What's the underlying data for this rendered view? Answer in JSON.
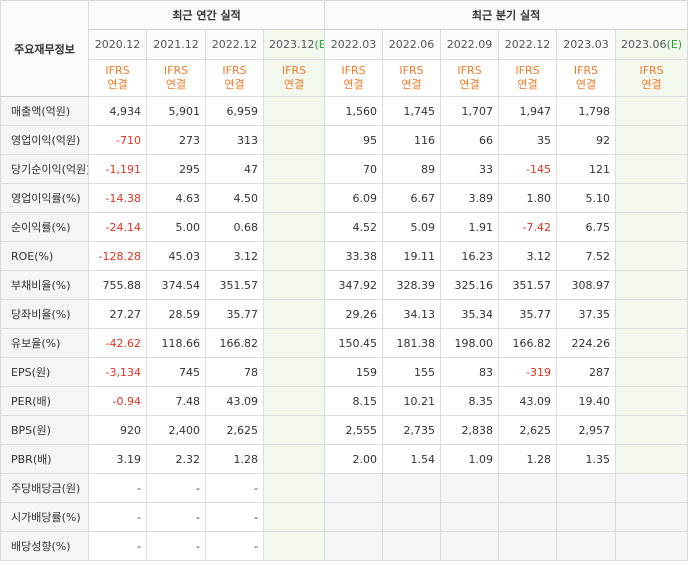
{
  "header": {
    "label_title": "주요재무정보",
    "annual_title": "최근 연간 실적",
    "quarter_title": "최근 분기 실적",
    "periods": [
      {
        "label": "2020.12",
        "est": ""
      },
      {
        "label": "2021.12",
        "est": ""
      },
      {
        "label": "2022.12",
        "est": ""
      },
      {
        "label": "2023.12",
        "est": "(E)"
      },
      {
        "label": "2022.03",
        "est": ""
      },
      {
        "label": "2022.06",
        "est": ""
      },
      {
        "label": "2022.09",
        "est": ""
      },
      {
        "label": "2022.12",
        "est": ""
      },
      {
        "label": "2023.03",
        "est": ""
      },
      {
        "label": "2023.06",
        "est": "(E)"
      }
    ],
    "basis_line1": "IFRS",
    "basis_line2": "연결"
  },
  "rows": [
    {
      "label": "매출액(억원)",
      "values": [
        "4,934",
        "5,901",
        "6,959",
        "",
        "1,560",
        "1,745",
        "1,707",
        "1,947",
        "1,798",
        ""
      ]
    },
    {
      "label": "영업이익(억원)",
      "values": [
        "-710",
        "273",
        "313",
        "",
        "95",
        "116",
        "66",
        "35",
        "92",
        ""
      ]
    },
    {
      "label": "당기순이익(억원)",
      "values": [
        "-1,191",
        "295",
        "47",
        "",
        "70",
        "89",
        "33",
        "-145",
        "121",
        ""
      ]
    },
    {
      "label": "영업이익률(%)",
      "values": [
        "-14.38",
        "4.63",
        "4.50",
        "",
        "6.09",
        "6.67",
        "3.89",
        "1.80",
        "5.10",
        ""
      ]
    },
    {
      "label": "순이익률(%)",
      "values": [
        "-24.14",
        "5.00",
        "0.68",
        "",
        "4.52",
        "5.09",
        "1.91",
        "-7.42",
        "6.75",
        ""
      ]
    },
    {
      "label": "ROE(%)",
      "values": [
        "-128.28",
        "45.03",
        "3.12",
        "",
        "33.38",
        "19.11",
        "16.23",
        "3.12",
        "7.52",
        ""
      ]
    },
    {
      "label": "부채비율(%)",
      "values": [
        "755.88",
        "374.54",
        "351.57",
        "",
        "347.92",
        "328.39",
        "325.16",
        "351.57",
        "308.97",
        ""
      ]
    },
    {
      "label": "당좌비율(%)",
      "values": [
        "27.27",
        "28.59",
        "35.77",
        "",
        "29.26",
        "34.13",
        "35.34",
        "35.77",
        "37.35",
        ""
      ]
    },
    {
      "label": "유보율(%)",
      "values": [
        "-42.62",
        "118.66",
        "166.82",
        "",
        "150.45",
        "181.38",
        "198.00",
        "166.82",
        "224.26",
        ""
      ]
    },
    {
      "label": "EPS(원)",
      "values": [
        "-3,134",
        "745",
        "78",
        "",
        "159",
        "155",
        "83",
        "-319",
        "287",
        ""
      ]
    },
    {
      "label": "PER(배)",
      "values": [
        "-0.94",
        "7.48",
        "43.09",
        "",
        "8.15",
        "10.21",
        "8.35",
        "43.09",
        "19.40",
        ""
      ]
    },
    {
      "label": "BPS(원)",
      "values": [
        "920",
        "2,400",
        "2,625",
        "",
        "2,555",
        "2,735",
        "2,838",
        "2,625",
        "2,957",
        ""
      ]
    },
    {
      "label": "PBR(배)",
      "values": [
        "3.19",
        "2.32",
        "1.28",
        "",
        "2.00",
        "1.54",
        "1.09",
        "1.28",
        "1.35",
        ""
      ]
    },
    {
      "label": "주당배당금(원)",
      "values": [
        "-",
        "-",
        "-",
        "",
        null,
        null,
        null,
        null,
        null,
        null
      ]
    },
    {
      "label": "시가배당률(%)",
      "values": [
        "-",
        "-",
        "-",
        "",
        null,
        null,
        null,
        null,
        null,
        null
      ]
    },
    {
      "label": "배당성향(%)",
      "values": [
        "-",
        "-",
        "-",
        "",
        null,
        null,
        null,
        null,
        null,
        null
      ]
    }
  ],
  "colors": {
    "negative": "#e0321e",
    "ifrs": "#f07a28",
    "estimate_mark": "#2e9c3b",
    "estimate_bg": "#f3f8ef",
    "label_bg": "#f5f5f5"
  }
}
